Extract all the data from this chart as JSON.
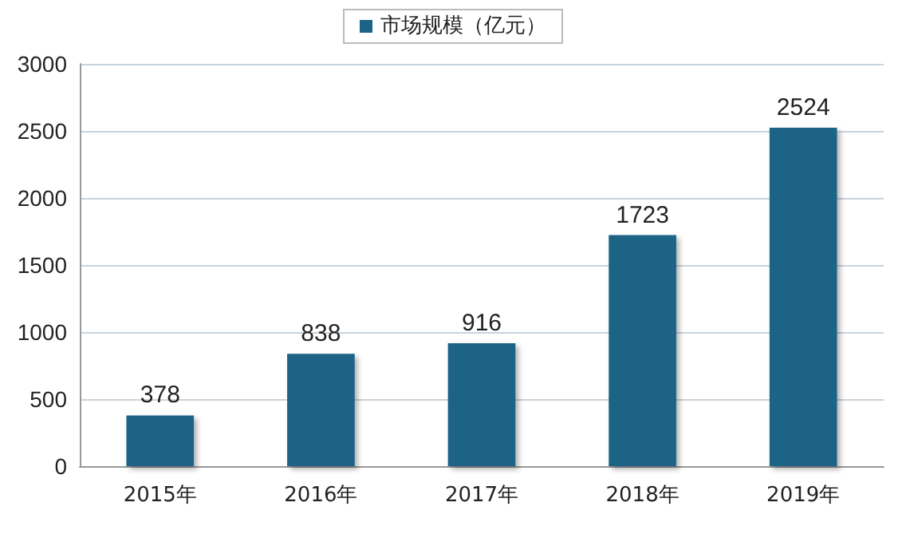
{
  "chart_data": {
    "type": "bar",
    "categories": [
      "2015年",
      "2016年",
      "2017年",
      "2018年",
      "2019年"
    ],
    "series": [
      {
        "name": "市场规模（亿元）",
        "color": "#1b6486",
        "values": [
          378,
          838,
          916,
          1723,
          2524
        ]
      }
    ],
    "ylim": [
      0,
      3000
    ],
    "yticks": [
      0,
      500,
      1000,
      1500,
      2000,
      2500,
      3000
    ],
    "grid": "y",
    "legend": "top",
    "data_labels": true
  }
}
